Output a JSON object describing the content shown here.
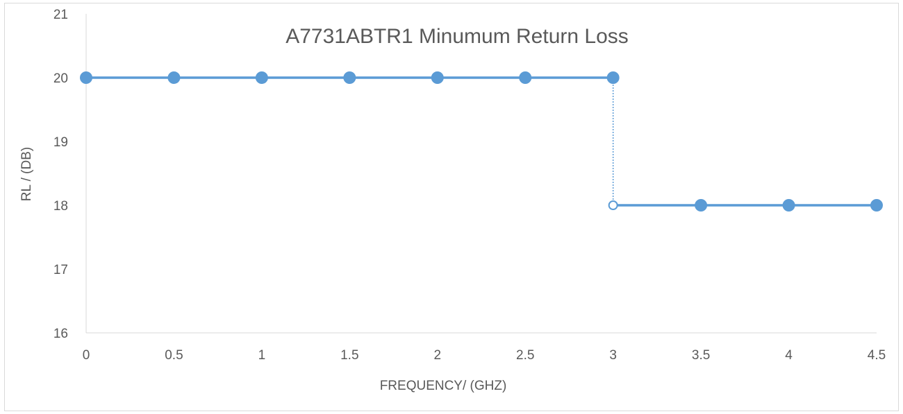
{
  "chart_data": {
    "type": "line",
    "title": "A7731ABTR1 Minumum Return Loss",
    "xlabel": "FREQUENCY/ (GHZ)",
    "ylabel": "RL / (DB)",
    "xlim": [
      0,
      4.5
    ],
    "ylim": [
      16,
      21
    ],
    "x_ticks": [
      "0",
      "0.5",
      "1",
      "1.5",
      "2",
      "2.5",
      "3",
      "3.5",
      "4",
      "4.5"
    ],
    "y_ticks": [
      "16",
      "17",
      "18",
      "19",
      "20",
      "21"
    ],
    "grid": false,
    "legend": "none",
    "series_color": "#5B9BD5",
    "series": [
      {
        "x": [
          0,
          0.5,
          1,
          1.5,
          2,
          2.5,
          3
        ],
        "y": [
          20,
          20,
          20,
          20,
          20,
          20,
          20
        ],
        "marker": "filled"
      },
      {
        "x": [
          3,
          3.5,
          4,
          4.5
        ],
        "y": [
          18,
          18,
          18,
          18
        ],
        "marker": "filled",
        "first_marker": "open"
      }
    ],
    "annotations": [
      {
        "type": "dotted-vertical",
        "x": 3,
        "y_from": 18,
        "y_to": 20
      }
    ]
  }
}
